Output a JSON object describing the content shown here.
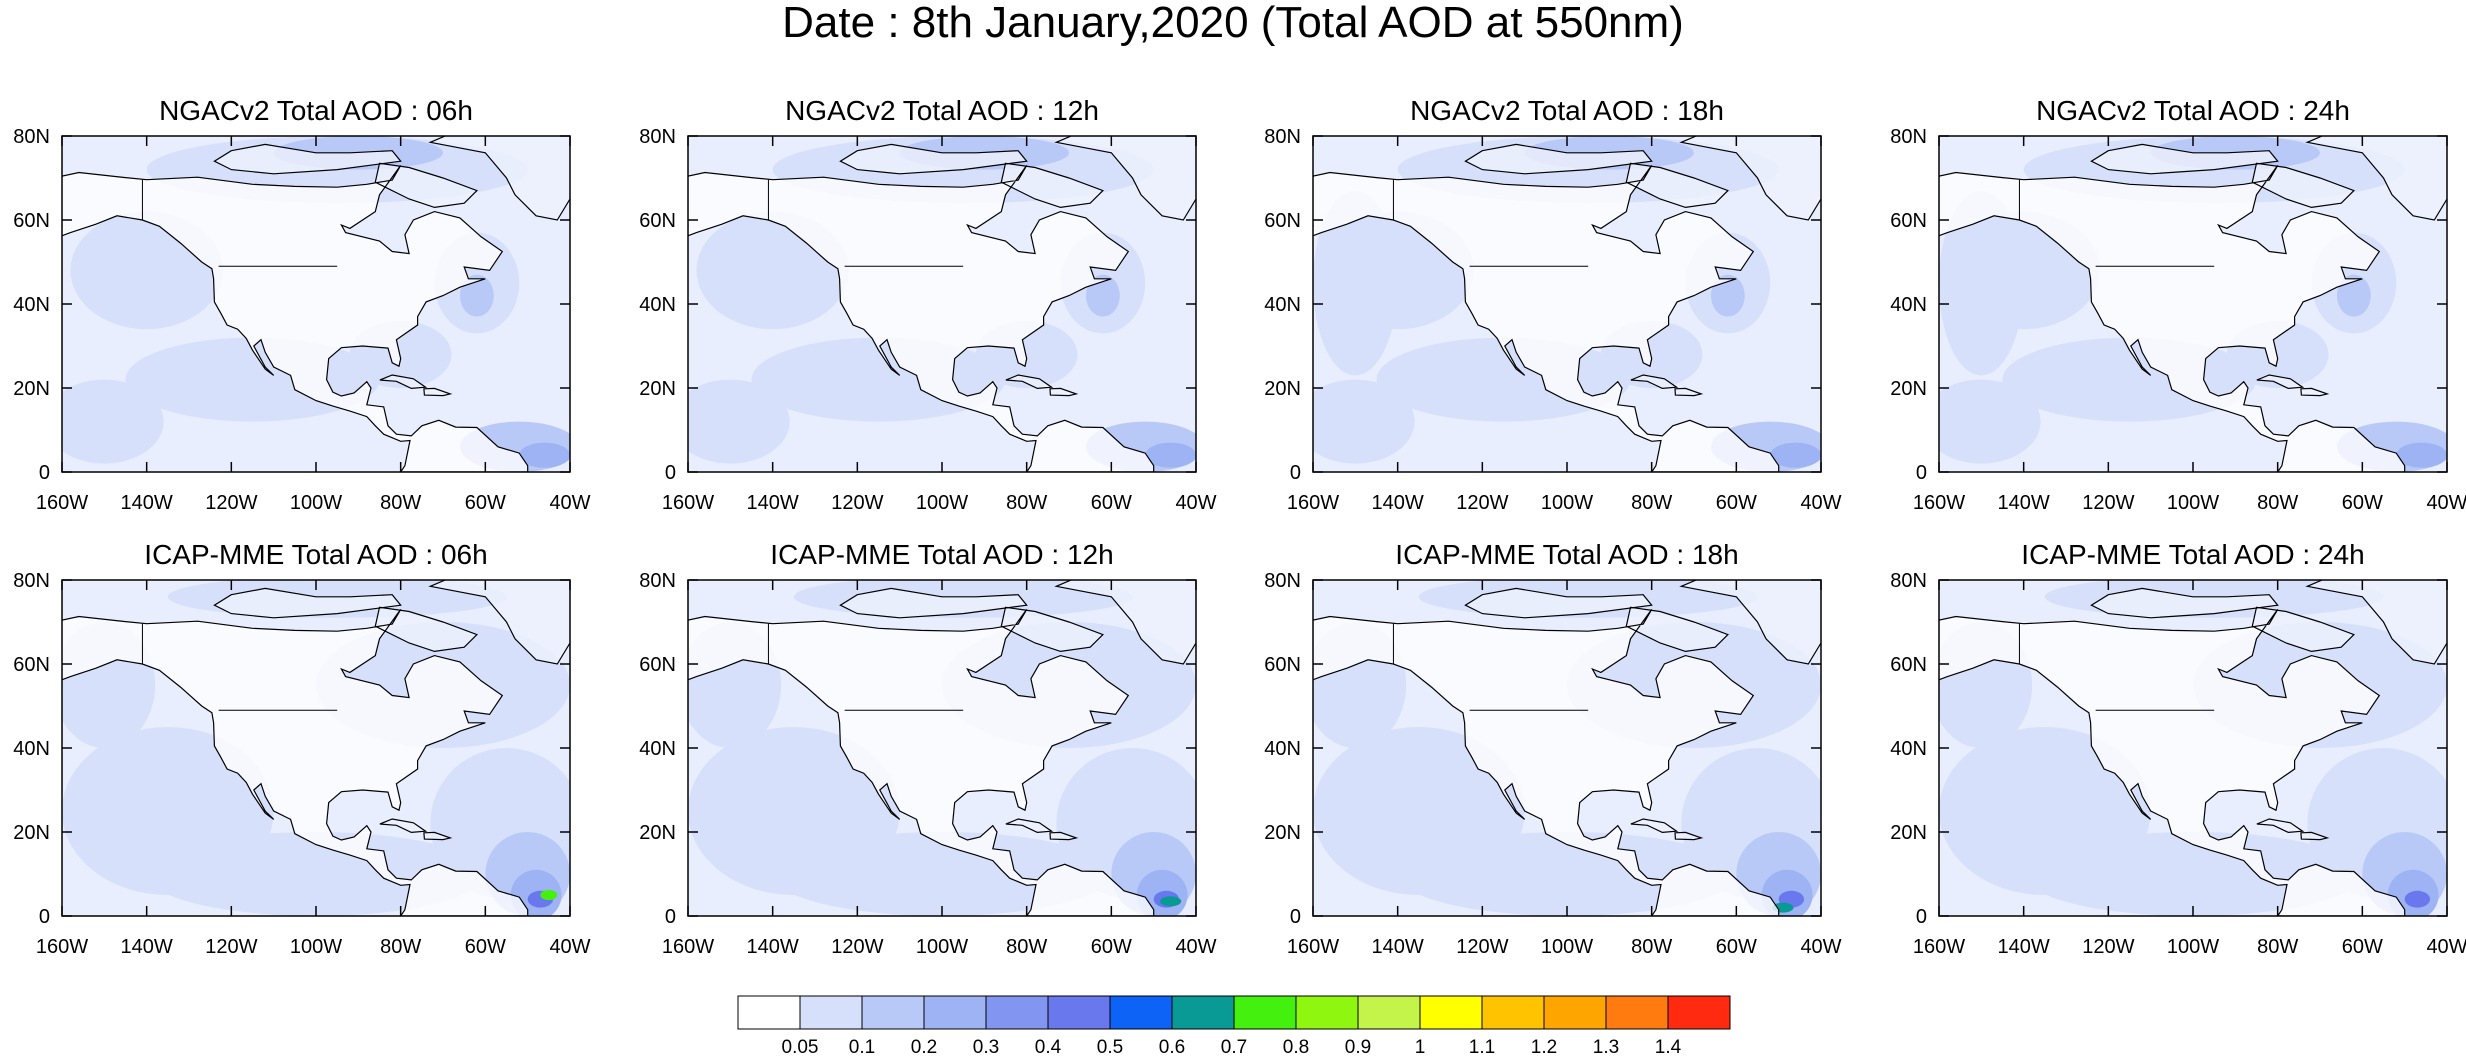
{
  "title": "Date : 8th January,2020 (Total AOD at 550nm)",
  "panels": [
    {
      "title": "NGACv2 Total AOD : 06h",
      "model": "NGACv2",
      "hour": "06h"
    },
    {
      "title": "NGACv2 Total AOD : 12h",
      "model": "NGACv2",
      "hour": "12h"
    },
    {
      "title": "NGACv2 Total AOD : 18h",
      "model": "NGACv2",
      "hour": "18h"
    },
    {
      "title": "NGACv2 Total AOD : 24h",
      "model": "NGACv2",
      "hour": "24h"
    },
    {
      "title": "ICAP-MME Total AOD : 06h",
      "model": "ICAP-MME",
      "hour": "06h"
    },
    {
      "title": "ICAP-MME Total AOD : 12h",
      "model": "ICAP-MME",
      "hour": "12h"
    },
    {
      "title": "ICAP-MME Total AOD : 18h",
      "model": "ICAP-MME",
      "hour": "18h"
    },
    {
      "title": "ICAP-MME Total AOD : 24h",
      "model": "ICAP-MME",
      "hour": "24h"
    }
  ],
  "map": {
    "lon_range": [
      -160,
      -40
    ],
    "lat_range": [
      0,
      80
    ],
    "lon_ticks": [
      -160,
      -140,
      -120,
      -100,
      -80,
      -60,
      -40
    ],
    "lon_tick_labels": [
      "160W",
      "140W",
      "120W",
      "100W",
      "80W",
      "60W",
      "40W"
    ],
    "lat_ticks": [
      0,
      20,
      40,
      60,
      80
    ],
    "lat_tick_labels": [
      "0",
      "20N",
      "40N",
      "60N",
      "80N"
    ]
  },
  "colorbar": {
    "labels": [
      "0.05",
      "0.1",
      "0.2",
      "0.3",
      "0.4",
      "0.5",
      "0.6",
      "0.7",
      "0.8",
      "0.9",
      "1",
      "1.1",
      "1.2",
      "1.3",
      "1.4"
    ],
    "colors": [
      "#ffffff",
      "#d6e0fb",
      "#b9c9f7",
      "#9db3f4",
      "#8296f1",
      "#6a78ee",
      "#0d63f5",
      "#0a9a96",
      "#44f10e",
      "#8ff60f",
      "#c4f349",
      "#ffff00",
      "#ffc300",
      "#ffa500",
      "#ff7a0f",
      "#ff2a0f"
    ]
  }
}
